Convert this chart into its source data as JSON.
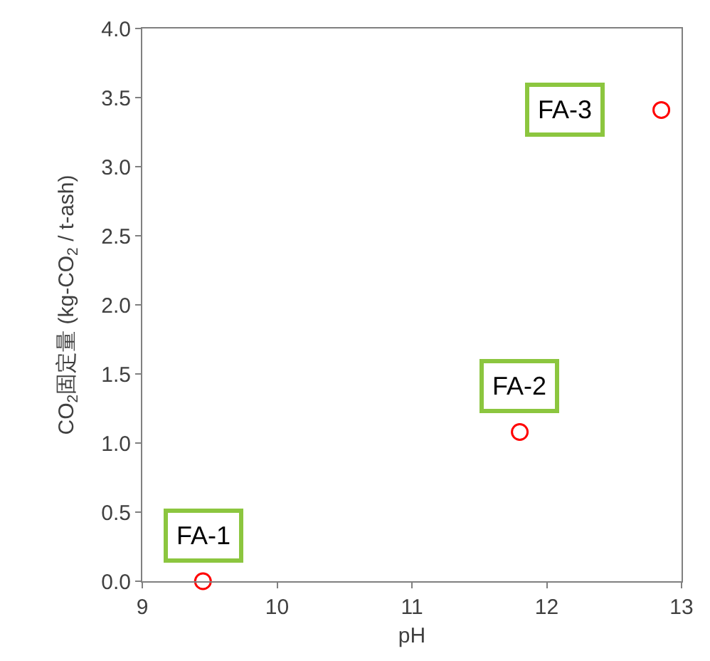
{
  "chart_data": {
    "type": "scatter",
    "xlabel": "pH",
    "ylabel": "CO$_{2}$固定量 (kg-CO$_{2}$ / t-ash)",
    "x": [
      9.45,
      11.8,
      12.85
    ],
    "series": [
      {
        "color": "#ff0000",
        "values": [
          0.0,
          1.08,
          3.41
        ]
      }
    ],
    "marker": "circle",
    "annotations": [
      {
        "text": "FA-1",
        "x": 9.45,
        "y": 0.0
      },
      {
        "text": "FA-2",
        "x": 11.8,
        "y": 1.08
      },
      {
        "text": "FA-3",
        "x": 12.85,
        "y": 3.41
      }
    ],
    "xlim": [
      9,
      13
    ],
    "xticks": [
      9,
      10,
      11,
      12,
      13
    ],
    "ylim": [
      0,
      4.0
    ],
    "yticks": [
      {
        "value": 0,
        "label": "0.0"
      },
      {
        "value": 0.5,
        "label": "0.5"
      },
      {
        "value": 1,
        "label": "1.0"
      },
      {
        "value": 1.5,
        "label": "1.5"
      },
      {
        "value": 2,
        "label": "2.0"
      },
      {
        "value": 2.5,
        "label": "2.5"
      },
      {
        "value": 3,
        "label": "3.0"
      },
      {
        "value": 3.5,
        "label": "3.5"
      },
      {
        "value": 4,
        "label": "4.0"
      }
    ]
  }
}
